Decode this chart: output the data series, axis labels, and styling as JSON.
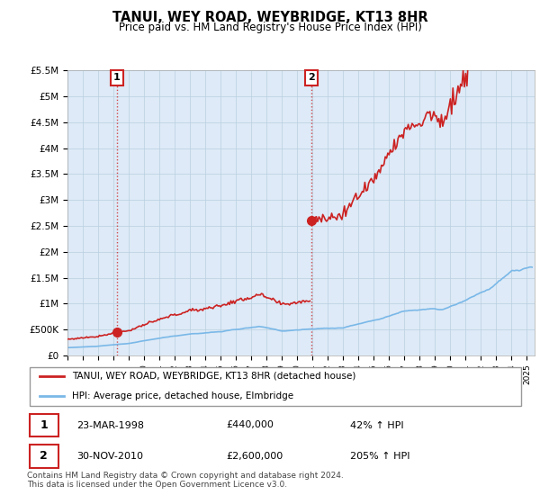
{
  "title": "TANUI, WEY ROAD, WEYBRIDGE, KT13 8HR",
  "subtitle": "Price paid vs. HM Land Registry's House Price Index (HPI)",
  "legend_line1": "TANUI, WEY ROAD, WEYBRIDGE, KT13 8HR (detached house)",
  "legend_line2": "HPI: Average price, detached house, Elmbridge",
  "table_rows": [
    {
      "num": "1",
      "date": "23-MAR-1998",
      "price": "£440,000",
      "hpi": "42% ↑ HPI"
    },
    {
      "num": "2",
      "date": "30-NOV-2010",
      "price": "£2,600,000",
      "hpi": "205% ↑ HPI"
    }
  ],
  "footer": "Contains HM Land Registry data © Crown copyright and database right 2024.\nThis data is licensed under the Open Government Licence v3.0.",
  "ylim": [
    0,
    5500000
  ],
  "yticks": [
    0,
    500000,
    1000000,
    1500000,
    2000000,
    2500000,
    3000000,
    3500000,
    4000000,
    4500000,
    5000000,
    5500000
  ],
  "ytick_labels": [
    "£0",
    "£500K",
    "£1M",
    "£1.5M",
    "£2M",
    "£2.5M",
    "£3M",
    "£3.5M",
    "£4M",
    "£4.5M",
    "£5M",
    "£5.5M"
  ],
  "hpi_color": "#7ab8e8",
  "sale_color": "#cc2222",
  "marker1_x": 1998.22,
  "marker1_y": 440000,
  "marker2_x": 2010.91,
  "marker2_y": 2600000,
  "vline1_x": 1998.22,
  "vline2_x": 2010.91,
  "bg_color": "#ffffff",
  "plot_bg_color": "#deeaf7",
  "grid_color": "#b8cfe0",
  "sale_linewidth": 1.2,
  "hpi_linewidth": 1.2,
  "xlim_left": 1995.0,
  "xlim_right": 2025.5
}
